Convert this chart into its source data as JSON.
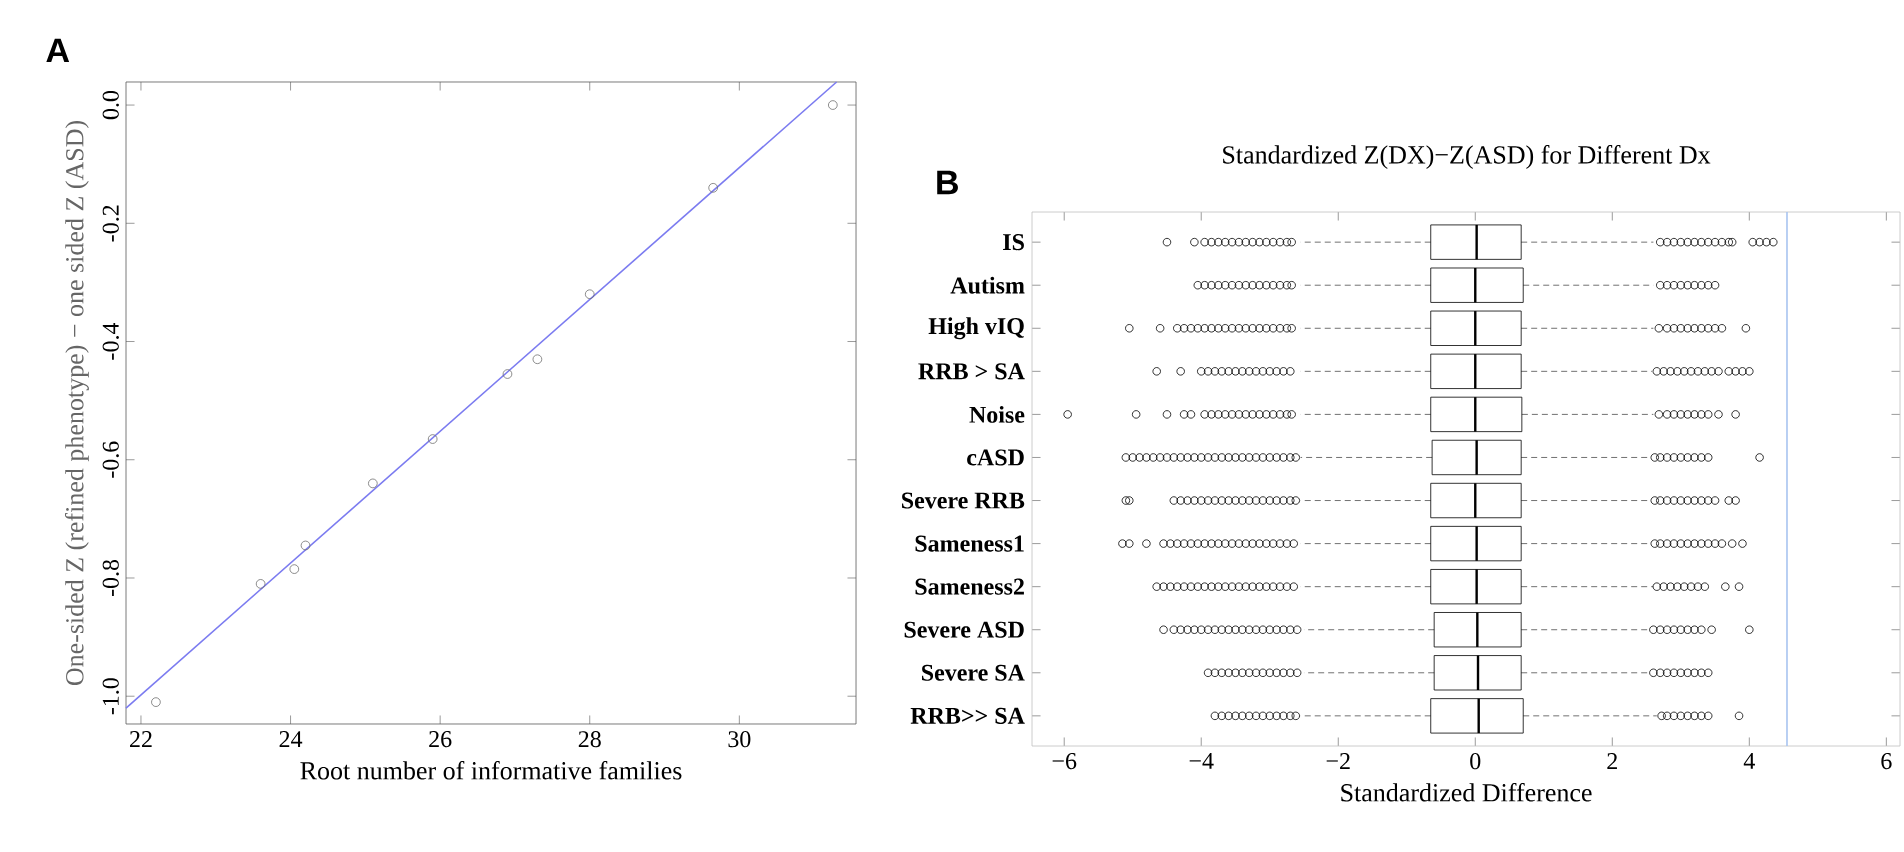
{
  "chart_data": [
    {
      "type": "scatter",
      "annotations": [
        "A"
      ],
      "xlabel": "Root number of informative  families",
      "ylabel": "One-sided Z (refined  phenotype)  − one sided Z (ASD)",
      "xlim": [
        21.8,
        31.56
      ],
      "ylim": [
        -1.047,
        0.039
      ],
      "xticks": [
        {
          "value": 22,
          "label": "22"
        },
        {
          "value": 24,
          "label": "24"
        },
        {
          "value": 26,
          "label": "26"
        },
        {
          "value": 28,
          "label": "28"
        },
        {
          "value": 30,
          "label": "30"
        }
      ],
      "yticks": [
        {
          "value": -1.0,
          "label": "-1.0"
        },
        {
          "value": -0.8,
          "label": "-0.8"
        },
        {
          "value": -0.6,
          "label": "-0.6"
        },
        {
          "value": -0.4,
          "label": "-0.4"
        },
        {
          "value": -0.2,
          "label": "-0.2"
        },
        {
          "value": 0.0,
          "label": "0.0"
        }
      ],
      "series": [
        {
          "type": "scatter",
          "color": "#707070",
          "marker": "circle",
          "x": [
            22.2,
            23.6,
            24.05,
            24.2,
            25.1,
            25.9,
            26.9,
            27.3,
            28.0,
            29.65,
            31.25
          ],
          "values": [
            -1.01,
            -0.81,
            -0.785,
            -0.745,
            -0.64,
            -0.565,
            -0.455,
            -0.43,
            -0.32,
            -0.14,
            0.0
          ]
        },
        {
          "type": "line",
          "color": "#7b7bf0",
          "x": [
            21.8,
            31.3
          ],
          "values": [
            -1.02,
            0.039
          ]
        }
      ]
    },
    {
      "type": "box",
      "orientation": "horizontal",
      "annotations": [
        "B"
      ],
      "title": "Standardized Z(DX)−Z(ASD) for Different Dx",
      "xlabel": "Standardized Difference",
      "categories": [
        "IS",
        "Autism",
        "High vIQ",
        "RRB > SA",
        "Noise",
        "cASD",
        "Severe RRB",
        "Sameness1",
        "Sameness2",
        "Severe ASD",
        "Severe SA",
        "RRB>> SA"
      ],
      "xlim": [
        -6.47,
        6.2
      ],
      "xticks": [
        {
          "value": -6,
          "label": "−6"
        },
        {
          "value": -4,
          "label": "−4"
        },
        {
          "value": -2,
          "label": "−2"
        },
        {
          "value": 0,
          "label": "0"
        },
        {
          "value": 2,
          "label": "2"
        },
        {
          "value": 4,
          "label": "4"
        },
        {
          "value": 6,
          "label": "6"
        }
      ],
      "ref_lines": [
        {
          "axis": "x",
          "value": 4.55,
          "color": "#a8c4f0"
        }
      ],
      "boxes": [
        {
          "low": -2.55,
          "q1": -0.65,
          "median": 0.02,
          "q3": 0.67,
          "high": 2.6,
          "outliers": [
            -4.5,
            -4.1,
            -3.95,
            -3.85,
            -3.75,
            -3.65,
            -3.55,
            -3.45,
            -3.35,
            -3.25,
            -3.15,
            -3.05,
            -2.95,
            -2.85,
            -2.75,
            -2.68,
            2.7,
            2.8,
            2.9,
            3.0,
            3.1,
            3.2,
            3.3,
            3.4,
            3.5,
            3.6,
            3.7,
            3.75,
            4.05,
            4.15,
            4.25,
            4.35
          ]
        },
        {
          "low": -2.55,
          "q1": -0.65,
          "median": 0.0,
          "q3": 0.7,
          "high": 2.6,
          "outliers": [
            -4.05,
            -3.95,
            -3.85,
            -3.75,
            -3.65,
            -3.55,
            -3.45,
            -3.35,
            -3.25,
            -3.15,
            -3.05,
            -2.95,
            -2.85,
            -2.75,
            -2.68,
            2.7,
            2.8,
            2.9,
            3.0,
            3.1,
            3.2,
            3.3,
            3.4,
            3.5
          ]
        },
        {
          "low": -2.55,
          "q1": -0.65,
          "median": 0.0,
          "q3": 0.67,
          "high": 2.6,
          "outliers": [
            -5.05,
            -4.6,
            -4.35,
            -4.25,
            -4.15,
            -4.05,
            -3.95,
            -3.85,
            -3.75,
            -3.65,
            -3.55,
            -3.45,
            -3.35,
            -3.25,
            -3.15,
            -3.05,
            -2.95,
            -2.85,
            -2.75,
            -2.68,
            2.68,
            2.8,
            2.9,
            3.0,
            3.1,
            3.2,
            3.3,
            3.4,
            3.5,
            3.6,
            3.95
          ]
        },
        {
          "low": -2.55,
          "q1": -0.65,
          "median": 0.0,
          "q3": 0.67,
          "high": 2.58,
          "outliers": [
            -4.65,
            -4.3,
            -4.0,
            -3.9,
            -3.8,
            -3.7,
            -3.6,
            -3.5,
            -3.4,
            -3.3,
            -3.2,
            -3.1,
            -3.0,
            -2.9,
            -2.8,
            -2.7,
            2.65,
            2.75,
            2.85,
            2.95,
            3.05,
            3.15,
            3.25,
            3.35,
            3.45,
            3.55,
            3.7,
            3.8,
            3.9,
            4.0
          ]
        },
        {
          "low": -2.55,
          "q1": -0.65,
          "median": 0.0,
          "q3": 0.68,
          "high": 2.6,
          "outliers": [
            -5.95,
            -4.95,
            -4.5,
            -4.25,
            -4.15,
            -3.95,
            -3.85,
            -3.75,
            -3.65,
            -3.55,
            -3.45,
            -3.35,
            -3.25,
            -3.15,
            -3.05,
            -2.95,
            -2.85,
            -2.75,
            -2.68,
            2.68,
            2.8,
            2.9,
            3.0,
            3.1,
            3.2,
            3.3,
            3.4,
            3.55,
            3.8
          ]
        },
        {
          "low": -2.55,
          "q1": -0.63,
          "median": 0.02,
          "q3": 0.67,
          "high": 2.55,
          "outliers": [
            -5.1,
            -5.0,
            -4.9,
            -4.8,
            -4.7,
            -4.6,
            -4.5,
            -4.4,
            -4.3,
            -4.2,
            -4.1,
            -4.0,
            -3.9,
            -3.8,
            -3.7,
            -3.6,
            -3.5,
            -3.4,
            -3.3,
            -3.2,
            -3.1,
            -3.0,
            -2.9,
            -2.8,
            -2.7,
            -2.62,
            2.62,
            2.7,
            2.8,
            2.9,
            3.0,
            3.1,
            3.2,
            3.3,
            3.4,
            4.15
          ]
        },
        {
          "low": -2.55,
          "q1": -0.65,
          "median": 0.0,
          "q3": 0.67,
          "high": 2.55,
          "outliers": [
            -5.1,
            -5.05,
            -4.4,
            -4.3,
            -4.2,
            -4.1,
            -4.0,
            -3.9,
            -3.8,
            -3.7,
            -3.6,
            -3.5,
            -3.4,
            -3.3,
            -3.2,
            -3.1,
            -3.0,
            -2.9,
            -2.8,
            -2.7,
            -2.62,
            2.62,
            2.7,
            2.8,
            2.9,
            3.0,
            3.1,
            3.2,
            3.3,
            3.4,
            3.5,
            3.7,
            3.8
          ]
        },
        {
          "low": -2.55,
          "q1": -0.65,
          "median": 0.02,
          "q3": 0.67,
          "high": 2.55,
          "outliers": [
            -5.15,
            -5.05,
            -4.8,
            -4.55,
            -4.45,
            -4.35,
            -4.25,
            -4.15,
            -4.05,
            -3.95,
            -3.85,
            -3.75,
            -3.65,
            -3.55,
            -3.45,
            -3.35,
            -3.25,
            -3.15,
            -3.05,
            -2.95,
            -2.85,
            -2.75,
            -2.65,
            2.62,
            2.7,
            2.8,
            2.9,
            3.0,
            3.1,
            3.2,
            3.3,
            3.4,
            3.5,
            3.6,
            3.75,
            3.9
          ]
        },
        {
          "low": -2.55,
          "q1": -0.65,
          "median": 0.02,
          "q3": 0.67,
          "high": 2.6,
          "outliers": [
            -4.65,
            -4.55,
            -4.45,
            -4.35,
            -4.25,
            -4.15,
            -4.05,
            -3.95,
            -3.85,
            -3.75,
            -3.65,
            -3.55,
            -3.45,
            -3.35,
            -3.25,
            -3.15,
            -3.05,
            -2.95,
            -2.85,
            -2.75,
            -2.65,
            2.65,
            2.75,
            2.85,
            2.95,
            3.05,
            3.15,
            3.25,
            3.35,
            3.65,
            3.85
          ]
        },
        {
          "low": -2.5,
          "q1": -0.6,
          "median": 0.03,
          "q3": 0.67,
          "high": 2.52,
          "outliers": [
            -4.55,
            -4.4,
            -4.3,
            -4.2,
            -4.1,
            -4.0,
            -3.9,
            -3.8,
            -3.7,
            -3.6,
            -3.5,
            -3.4,
            -3.3,
            -3.2,
            -3.1,
            -3.0,
            -2.9,
            -2.8,
            -2.7,
            -2.6,
            2.6,
            2.7,
            2.8,
            2.9,
            3.0,
            3.1,
            3.2,
            3.3,
            3.45,
            4.0
          ]
        },
        {
          "low": -2.5,
          "q1": -0.6,
          "median": 0.04,
          "q3": 0.67,
          "high": 2.52,
          "outliers": [
            -3.9,
            -3.8,
            -3.7,
            -3.6,
            -3.5,
            -3.4,
            -3.3,
            -3.2,
            -3.1,
            -3.0,
            -2.9,
            -2.8,
            -2.7,
            -2.6,
            2.6,
            2.7,
            2.8,
            2.9,
            3.0,
            3.1,
            3.2,
            3.3,
            3.4
          ]
        },
        {
          "low": -2.55,
          "q1": -0.65,
          "median": 0.05,
          "q3": 0.7,
          "high": 2.65,
          "outliers": [
            -3.8,
            -3.7,
            -3.6,
            -3.5,
            -3.4,
            -3.3,
            -3.2,
            -3.1,
            -3.0,
            -2.9,
            -2.8,
            -2.7,
            -2.62,
            2.72,
            2.8,
            2.9,
            3.0,
            3.1,
            3.2,
            3.3,
            3.4,
            3.85
          ]
        }
      ]
    }
  ]
}
